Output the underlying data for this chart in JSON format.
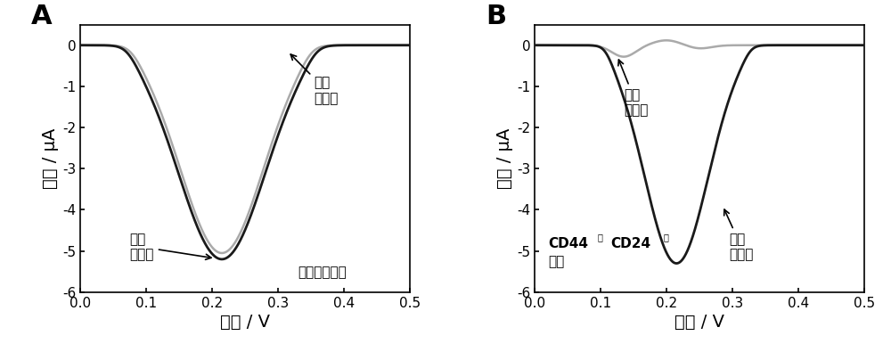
{
  "panel_A": {
    "label": "A",
    "xlabel": "电压 / V",
    "ylabel": "电流 / μA",
    "xlim": [
      0.0,
      0.5
    ],
    "ylim": [
      -6,
      0.5
    ],
    "yticks": [
      0,
      -1,
      -2,
      -3,
      -4,
      -5,
      -6
    ],
    "xticks": [
      0.0,
      0.1,
      0.2,
      0.3,
      0.4,
      0.5
    ],
    "annotation_before": "信号\n擦除前",
    "annotation_after": "信号\n擦除后",
    "label_text": "乳腺癌干细胞"
  },
  "panel_B": {
    "label": "B",
    "xlabel": "电压 / V",
    "ylabel": "电流 / μA",
    "xlim": [
      0.0,
      0.5
    ],
    "ylim": [
      -6,
      0.5
    ],
    "yticks": [
      0,
      -1,
      -2,
      -3,
      -4,
      -5,
      -6
    ],
    "xticks": [
      0.0,
      0.1,
      0.2,
      0.3,
      0.4,
      0.5
    ],
    "annotation_before": "信号\n擦除前",
    "annotation_after": "信号\n擦除后",
    "label_text_line1": "CD44",
    "label_text_sup1": "阳",
    "label_text_mid": "CD24",
    "label_text_sup2": "阳",
    "label_text_line2": "细胞"
  },
  "background_color": "#ffffff",
  "line_color_black": "#1a1a1a",
  "line_color_gray": "#aaaaaa",
  "fontsize_label": 14,
  "fontsize_tick": 11,
  "fontsize_annot": 11,
  "fontsize_panel": 22
}
